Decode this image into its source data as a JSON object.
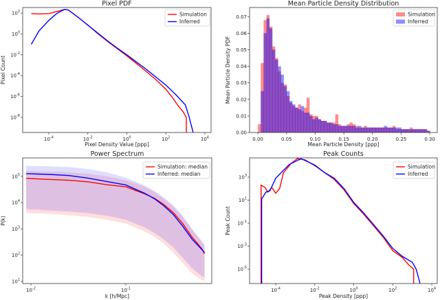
{
  "chart_data": [
    {
      "type": "line",
      "title": "Pixel PDF",
      "xlabel": "Pixel Density Value [ppp]",
      "ylabel": "Pixel Count",
      "xscale": "log10",
      "yscale": "log10",
      "xlim": [
        -5.34,
        4.32
      ],
      "ylim": [
        -9.45,
        2.53
      ],
      "xticks": [
        -4,
        -2,
        0,
        2,
        4
      ],
      "yticks": [
        2,
        0,
        -2,
        -4,
        -6,
        -8
      ],
      "legend": "top-right",
      "series": [
        {
          "name": "Simulation",
          "color": "#ff0000",
          "x": [
            -4.9,
            -4.5,
            -4.0,
            -3.6,
            -3.2,
            -3.0,
            -2.5,
            -2.0,
            -1.5,
            -1.0,
            -0.5,
            0.0,
            0.5,
            1.0,
            1.5,
            2.0,
            2.3,
            2.6,
            2.9,
            3.05,
            3.05
          ],
          "y": [
            1.95,
            1.92,
            1.95,
            2.15,
            2.35,
            2.3,
            1.6,
            0.85,
            0.05,
            -0.7,
            -1.4,
            -2.1,
            -2.85,
            -3.6,
            -4.4,
            -5.3,
            -6.0,
            -6.8,
            -7.5,
            -8.0,
            -9.45
          ]
        },
        {
          "name": "Inferred",
          "color": "#0000ff",
          "x": [
            -4.9,
            -4.5,
            -4.0,
            -3.6,
            -3.2,
            -3.0,
            -2.5,
            -2.0,
            -1.5,
            -1.0,
            -0.5,
            0.0,
            0.5,
            1.0,
            1.5,
            2.0,
            2.5,
            3.0,
            3.2,
            3.4
          ],
          "y": [
            -1.0,
            0.3,
            1.3,
            1.95,
            2.35,
            2.3,
            1.6,
            0.85,
            0.1,
            -0.65,
            -1.35,
            -2.0,
            -2.7,
            -3.4,
            -4.15,
            -4.9,
            -5.8,
            -6.8,
            -8.0,
            -9.45
          ]
        }
      ]
    },
    {
      "type": "bar",
      "title": "Mean Particle Density Distribution",
      "xlabel": "Mean Particle Density [ppp]",
      "ylabel": "Mean Particle Density PDF",
      "xlim": [
        -0.0145,
        0.313
      ],
      "ylim": [
        0,
        0.0755
      ],
      "xticks": [
        "0.00",
        "0.05",
        "0.10",
        "0.15",
        "0.20",
        "0.25",
        "0.30"
      ],
      "yticks": [
        "0.00",
        "0.01",
        "0.02",
        "0.03",
        "0.04",
        "0.05",
        "0.06",
        "0.07"
      ],
      "bin_width": 0.005,
      "legend": "top-right",
      "series": [
        {
          "name": "Simulation",
          "color": "#ff0000",
          "values": [
            0.005,
            0.042,
            0.068,
            0.071,
            0.064,
            0.052,
            0.045,
            0.037,
            0.03,
            0.029,
            0.022,
            0.018,
            0.016,
            0.015,
            0.017,
            0.013,
            0.015,
            0.021,
            0.011,
            0.01,
            0.01,
            0.008,
            0.007,
            0.007,
            0.006,
            0.006,
            0.006,
            0.011,
            0.005,
            0.004,
            0.004,
            0.005,
            0.006,
            0.005,
            0.004,
            0.003,
            0.003,
            0.004,
            0.003,
            0.003,
            0.003,
            0.003,
            0.003,
            0.003,
            0.003,
            0.003,
            0.003,
            0.004,
            0.002,
            0.002,
            0.002,
            0.002,
            0.002,
            0.003,
            0.002,
            0.002,
            0.002,
            0.002,
            0.002,
            0.001
          ]
        },
        {
          "name": "Inferred",
          "color": "#0000ff",
          "values": [
            0.0,
            0.025,
            0.06,
            0.069,
            0.063,
            0.05,
            0.044,
            0.04,
            0.035,
            0.028,
            0.025,
            0.019,
            0.017,
            0.015,
            0.014,
            0.016,
            0.012,
            0.012,
            0.01,
            0.008,
            0.009,
            0.008,
            0.007,
            0.007,
            0.006,
            0.006,
            0.005,
            0.005,
            0.004,
            0.004,
            0.004,
            0.004,
            0.004,
            0.004,
            0.003,
            0.004,
            0.003,
            0.003,
            0.003,
            0.003,
            0.003,
            0.003,
            0.003,
            0.003,
            0.004,
            0.003,
            0.003,
            0.003,
            0.003,
            0.003,
            0.002,
            0.002,
            0.002,
            0.002,
            0.002,
            0.002,
            0.002,
            0.002,
            0.002,
            0.001
          ]
        }
      ]
    },
    {
      "type": "line",
      "title": "Power Spectrum",
      "xlabel": "k [h/Mpc]",
      "ylabel": "P(k)",
      "xscale": "log10",
      "yscale": "log10",
      "xlim": [
        -2.087,
        -0.094
      ],
      "ylim": [
        0.92,
        5.7
      ],
      "xticks": [
        -2,
        -1
      ],
      "yticks": [
        5,
        4,
        3,
        2,
        1
      ],
      "legend": "top-right",
      "x": [
        -2.05,
        -1.8,
        -1.6,
        -1.4,
        -1.2,
        -1.0,
        -0.8,
        -0.7,
        -0.6,
        -0.5,
        -0.4,
        -0.3,
        -0.2,
        -0.17
      ],
      "series": [
        {
          "name": "Simulation: median",
          "color": "#ff0000",
          "y": [
            4.92,
            4.88,
            4.85,
            4.79,
            4.68,
            4.6,
            4.33,
            4.17,
            3.93,
            3.62,
            3.2,
            2.68,
            2.25,
            2.05
          ],
          "band_upper": [
            5.2,
            5.18,
            5.15,
            5.1,
            5.0,
            4.85,
            4.6,
            4.4,
            4.15,
            3.85,
            3.45,
            2.95,
            2.5,
            2.35
          ],
          "band_lower": [
            3.6,
            3.57,
            3.52,
            3.45,
            3.35,
            3.2,
            2.9,
            2.7,
            2.45,
            2.1,
            1.7,
            1.3,
            1.05,
            1.0
          ]
        },
        {
          "name": "Inferred: median",
          "color": "#0000ff",
          "y": [
            5.1,
            5.07,
            5.03,
            4.93,
            4.8,
            4.67,
            4.35,
            4.15,
            3.88,
            3.55,
            3.1,
            2.6,
            2.22,
            2.1
          ],
          "band_upper": [
            5.4,
            5.38,
            5.35,
            5.28,
            5.15,
            4.95,
            4.65,
            4.45,
            4.2,
            3.9,
            3.5,
            3.0,
            2.55,
            2.4
          ],
          "band_lower": [
            3.75,
            3.7,
            3.66,
            3.6,
            3.5,
            3.35,
            3.05,
            2.85,
            2.6,
            2.3,
            1.9,
            1.5,
            1.2,
            1.15
          ]
        }
      ]
    },
    {
      "type": "line",
      "title": "Peak Counts",
      "xlabel": "Peak Density [ppp]",
      "ylabel": "Peak Count",
      "xscale": "log10",
      "yscale": "log10",
      "xlim": [
        -5.34,
        4.28
      ],
      "ylim": [
        -6.25,
        4.67
      ],
      "xticks": [
        -4,
        -2,
        0,
        2,
        4
      ],
      "yticks": [
        3,
        1,
        -1,
        -3,
        -5
      ],
      "legend": "top-right",
      "series": [
        {
          "name": "Simulation",
          "color": "#ff0000",
          "x": [
            -4.75,
            -4.75,
            -4.55,
            -4.4,
            -4.2,
            -4.0,
            -3.8,
            -3.6,
            -3.2,
            -2.9,
            -2.5,
            -2.0,
            -1.5,
            -1.0,
            -0.5,
            0.0,
            0.5,
            1.0,
            1.5,
            2.0,
            2.5,
            2.8,
            3.07,
            3.07
          ],
          "y": [
            -6.25,
            2.3,
            2.1,
            1.7,
            2.1,
            1.6,
            2.0,
            3.4,
            4.2,
            4.6,
            4.5,
            4.0,
            3.4,
            2.8,
            1.9,
            0.7,
            -0.2,
            -1.2,
            -2.2,
            -3.4,
            -4.0,
            -4.6,
            -5.0,
            -6.25
          ]
        },
        {
          "name": "Inferred",
          "color": "#0000ff",
          "x": [
            -4.72,
            -4.72,
            -4.5,
            -4.3,
            -4.0,
            -3.6,
            -3.3,
            -2.7,
            -2.0,
            -1.5,
            -1.0,
            -0.5,
            0.0,
            0.5,
            1.0,
            1.5,
            2.0,
            2.5,
            3.0,
            3.2,
            3.4
          ],
          "y": [
            -6.25,
            1.1,
            1.7,
            1.8,
            2.9,
            3.6,
            4.1,
            4.6,
            4.05,
            3.4,
            2.9,
            2.0,
            0.8,
            -0.1,
            -1.1,
            -2.1,
            -3.2,
            -3.9,
            -4.4,
            -5.0,
            -6.25
          ]
        }
      ]
    }
  ]
}
